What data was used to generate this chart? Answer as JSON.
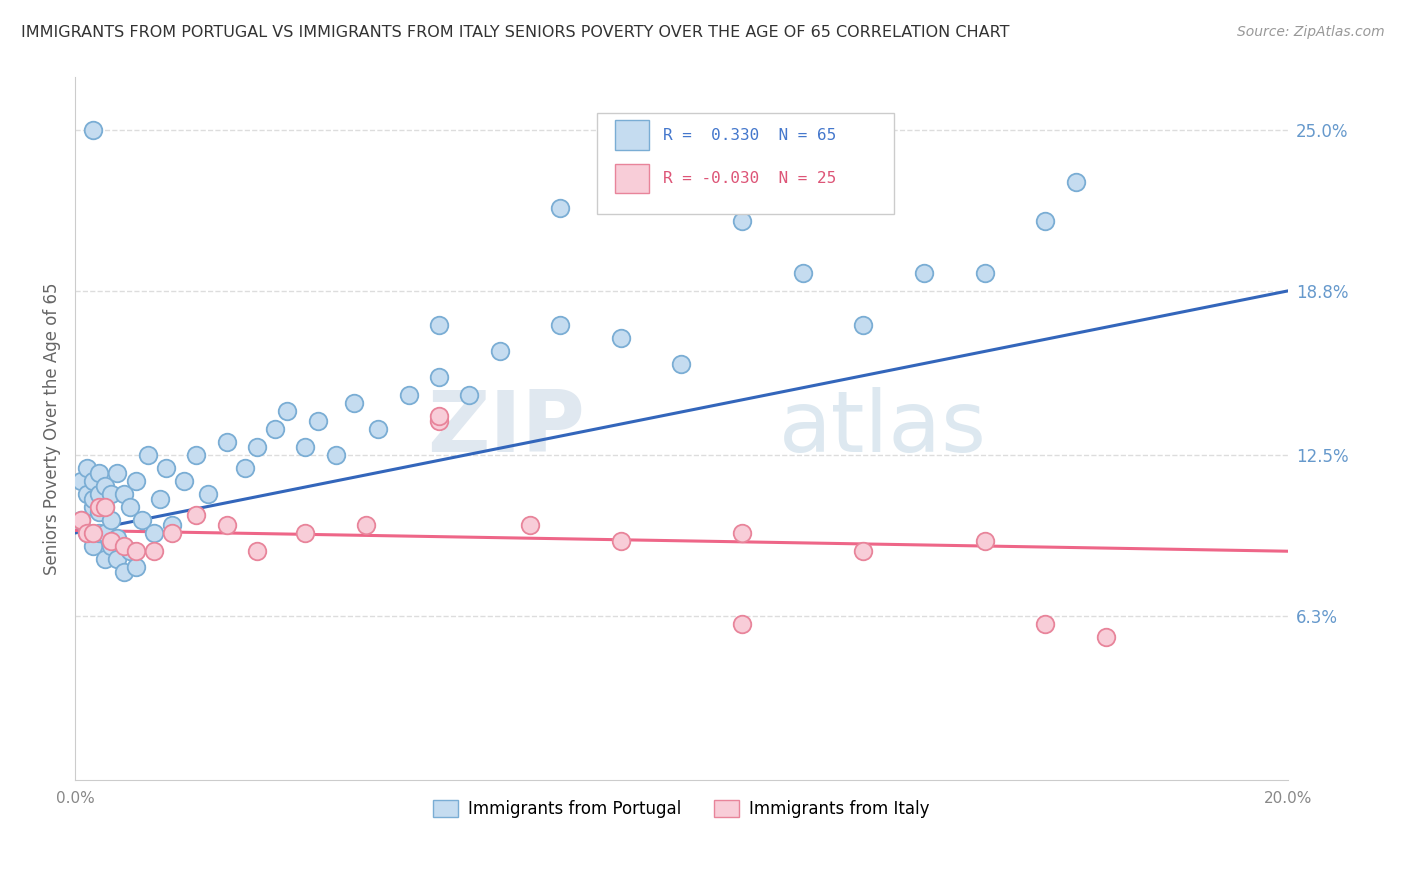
{
  "title": "IMMIGRANTS FROM PORTUGAL VS IMMIGRANTS FROM ITALY SENIORS POVERTY OVER THE AGE OF 65 CORRELATION CHART",
  "source": "Source: ZipAtlas.com",
  "ylabel": "Seniors Poverty Over the Age of 65",
  "xlim": [
    0.0,
    0.2
  ],
  "ylim": [
    0.0,
    0.27
  ],
  "xticks": [
    0.0,
    0.025,
    0.05,
    0.075,
    0.1,
    0.125,
    0.15,
    0.175,
    0.2
  ],
  "xticklabels": [
    "0.0%",
    "",
    "",
    "",
    "",
    "",
    "",
    "",
    "20.0%"
  ],
  "ytick_labels_right": [
    "25.0%",
    "18.8%",
    "12.5%",
    "6.3%"
  ],
  "ytick_vals_right": [
    0.25,
    0.188,
    0.125,
    0.063
  ],
  "legend_r_portugal": "0.330",
  "legend_n_portugal": "65",
  "legend_r_italy": "-0.030",
  "legend_n_italy": "25",
  "color_portugal": "#c5dcf0",
  "color_portugal_edge": "#7aadd4",
  "color_italy": "#f8cdd8",
  "color_italy_edge": "#e8849a",
  "color_line_portugal": "#3366bb",
  "color_line_italy": "#ee6688",
  "color_grid": "#dddddd",
  "color_title": "#333333",
  "color_ytick_right": "#6699cc",
  "watermark_zip": "ZIP",
  "watermark_atlas": "atlas",
  "portugal_x": [
    0.001,
    0.001,
    0.002,
    0.002,
    0.002,
    0.003,
    0.003,
    0.003,
    0.003,
    0.004,
    0.004,
    0.004,
    0.004,
    0.005,
    0.005,
    0.005,
    0.005,
    0.006,
    0.006,
    0.006,
    0.007,
    0.007,
    0.007,
    0.008,
    0.008,
    0.009,
    0.009,
    0.01,
    0.01,
    0.011,
    0.012,
    0.013,
    0.014,
    0.015,
    0.016,
    0.018,
    0.02,
    0.022,
    0.025,
    0.028,
    0.03,
    0.033,
    0.035,
    0.038,
    0.04,
    0.043,
    0.046,
    0.05,
    0.055,
    0.06,
    0.065,
    0.07,
    0.08,
    0.09,
    0.1,
    0.11,
    0.12,
    0.13,
    0.14,
    0.15,
    0.16,
    0.165,
    0.003,
    0.06,
    0.08
  ],
  "portugal_y": [
    0.1,
    0.115,
    0.095,
    0.11,
    0.12,
    0.09,
    0.105,
    0.108,
    0.115,
    0.095,
    0.103,
    0.11,
    0.118,
    0.085,
    0.095,
    0.105,
    0.113,
    0.09,
    0.1,
    0.11,
    0.085,
    0.093,
    0.118,
    0.08,
    0.11,
    0.088,
    0.105,
    0.082,
    0.115,
    0.1,
    0.125,
    0.095,
    0.108,
    0.12,
    0.098,
    0.115,
    0.125,
    0.11,
    0.13,
    0.12,
    0.128,
    0.135,
    0.142,
    0.128,
    0.138,
    0.125,
    0.145,
    0.135,
    0.148,
    0.155,
    0.148,
    0.165,
    0.175,
    0.17,
    0.16,
    0.215,
    0.195,
    0.175,
    0.195,
    0.195,
    0.215,
    0.23,
    0.25,
    0.175,
    0.22
  ],
  "italy_x": [
    0.001,
    0.002,
    0.003,
    0.004,
    0.005,
    0.006,
    0.008,
    0.01,
    0.013,
    0.016,
    0.02,
    0.025,
    0.03,
    0.038,
    0.048,
    0.06,
    0.075,
    0.09,
    0.11,
    0.13,
    0.15,
    0.16,
    0.17,
    0.06,
    0.11
  ],
  "italy_y": [
    0.1,
    0.095,
    0.095,
    0.105,
    0.105,
    0.092,
    0.09,
    0.088,
    0.088,
    0.095,
    0.102,
    0.098,
    0.088,
    0.095,
    0.098,
    0.138,
    0.098,
    0.092,
    0.095,
    0.088,
    0.092,
    0.06,
    0.055,
    0.14,
    0.06
  ]
}
